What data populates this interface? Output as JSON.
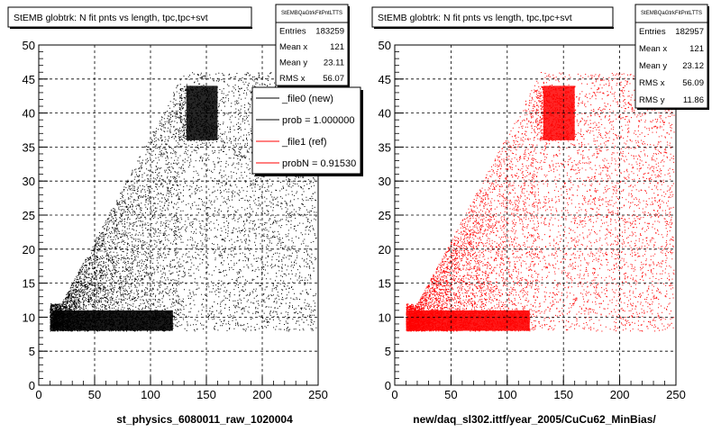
{
  "chart_data": [
    {
      "type": "scatter",
      "title": "StEMB globtrk: N fit pnts vs length, tpc,tpc+svt",
      "xlabel": "st_physics_6080011_raw_1020004",
      "ylabel": "",
      "xlim": [
        0,
        250
      ],
      "ylim": [
        0,
        50
      ],
      "x_ticks": [
        0,
        50,
        100,
        150,
        200,
        250
      ],
      "y_ticks": [
        0,
        5,
        10,
        15,
        20,
        25,
        30,
        35,
        40,
        45,
        50
      ],
      "grid": true,
      "marker_color": "#000000",
      "stats": {
        "title": "StEMBQaGtrkFitPntLTTS",
        "rows": [
          {
            "label": "Entries",
            "value": "183259"
          },
          {
            "label": "Mean x",
            "value": "121"
          },
          {
            "label": "Mean y",
            "value": "23.11"
          },
          {
            "label": "RMS x",
            "value": "56.07"
          }
        ]
      },
      "legend": {
        "placement": "top-right",
        "entries": [
          {
            "label": "_file0 (new)",
            "color": "#000000"
          },
          {
            "label": "prob = 1.000000",
            "color": "#000000"
          },
          {
            "label": "_file1 (ref)",
            "color": "#ff0000"
          },
          {
            "label": "probN = 0.91530",
            "color": "#ff0000"
          }
        ]
      }
    },
    {
      "type": "scatter",
      "title": "StEMB globtrk: N fit pnts vs length, tpc,tpc+svt",
      "xlabel": "new/daq_sl302.ittf/year_2005/CuCu62_MinBias/",
      "ylabel": "",
      "xlim": [
        0,
        250
      ],
      "ylim": [
        0,
        50
      ],
      "x_ticks": [
        0,
        50,
        100,
        150,
        200,
        250
      ],
      "y_ticks": [
        0,
        5,
        10,
        15,
        20,
        25,
        30,
        35,
        40,
        45,
        50
      ],
      "grid": true,
      "marker_color": "#ff0000",
      "stats": {
        "title": "StEMBQaGtrkFitPntLTTS",
        "rows": [
          {
            "label": "Entries",
            "value": "182957"
          },
          {
            "label": "Mean x",
            "value": "121"
          },
          {
            "label": "Mean y",
            "value": "23.12"
          },
          {
            "label": "RMS x",
            "value": "56.09"
          },
          {
            "label": "RMS y",
            "value": "11.86"
          }
        ]
      }
    }
  ]
}
